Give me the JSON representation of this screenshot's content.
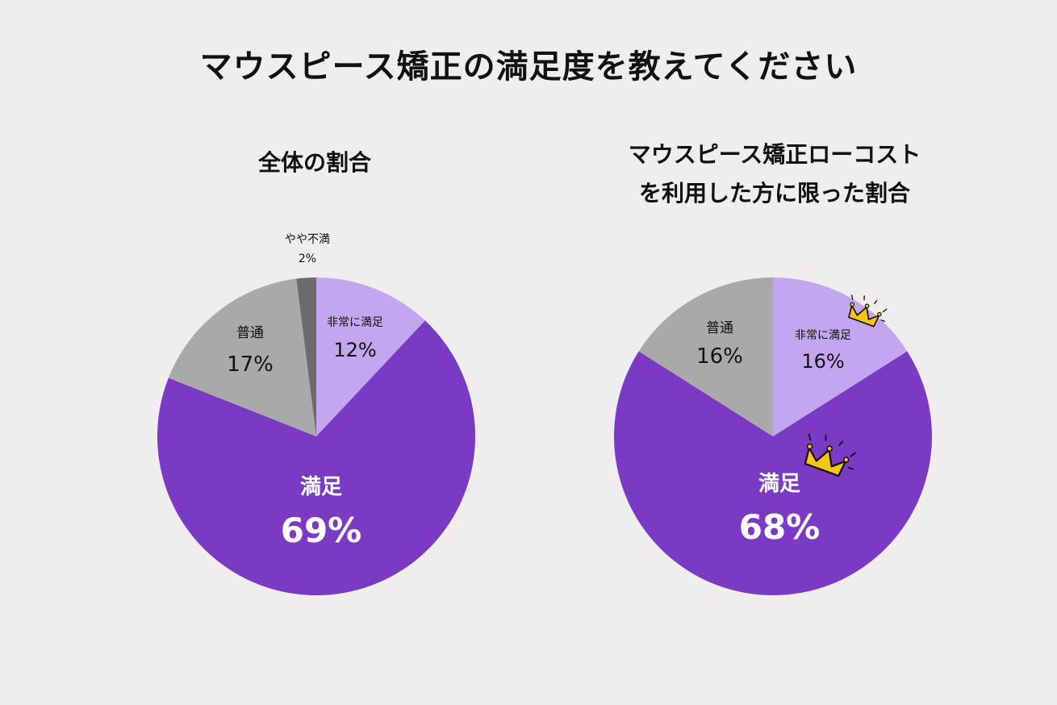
{
  "title": "マウスピース矯正の満足度を教えてください",
  "chart_data": [
    {
      "type": "pie",
      "title": "全体の割合",
      "slices": [
        {
          "label": "非常に満足",
          "value": 12,
          "value_label": "12%",
          "color": "#c2a6f0"
        },
        {
          "label": "満足",
          "value": 69,
          "value_label": "69%",
          "color": "#7a3ac4"
        },
        {
          "label": "普通",
          "value": 17,
          "value_label": "17%",
          "color": "#a9a9a9"
        },
        {
          "label": "やや不満",
          "value": 2,
          "value_label": "2%",
          "color": "#6b6b6b"
        }
      ]
    },
    {
      "type": "pie",
      "title": "マウスピース矯正ローコストを利用した方に限った割合",
      "title_lines": [
        "マウスピース矯正ローコスト",
        "を利用した方に限った割合"
      ],
      "slices": [
        {
          "label": "非常に満足",
          "value": 16,
          "value_label": "16%",
          "color": "#c2a6f0",
          "icon": "crown-icon"
        },
        {
          "label": "満足",
          "value": 68,
          "value_label": "68%",
          "color": "#7a3ac4",
          "icon": "crown-icon"
        },
        {
          "label": "普通",
          "value": 16,
          "value_label": "16%",
          "color": "#a9a9a9"
        }
      ]
    }
  ]
}
